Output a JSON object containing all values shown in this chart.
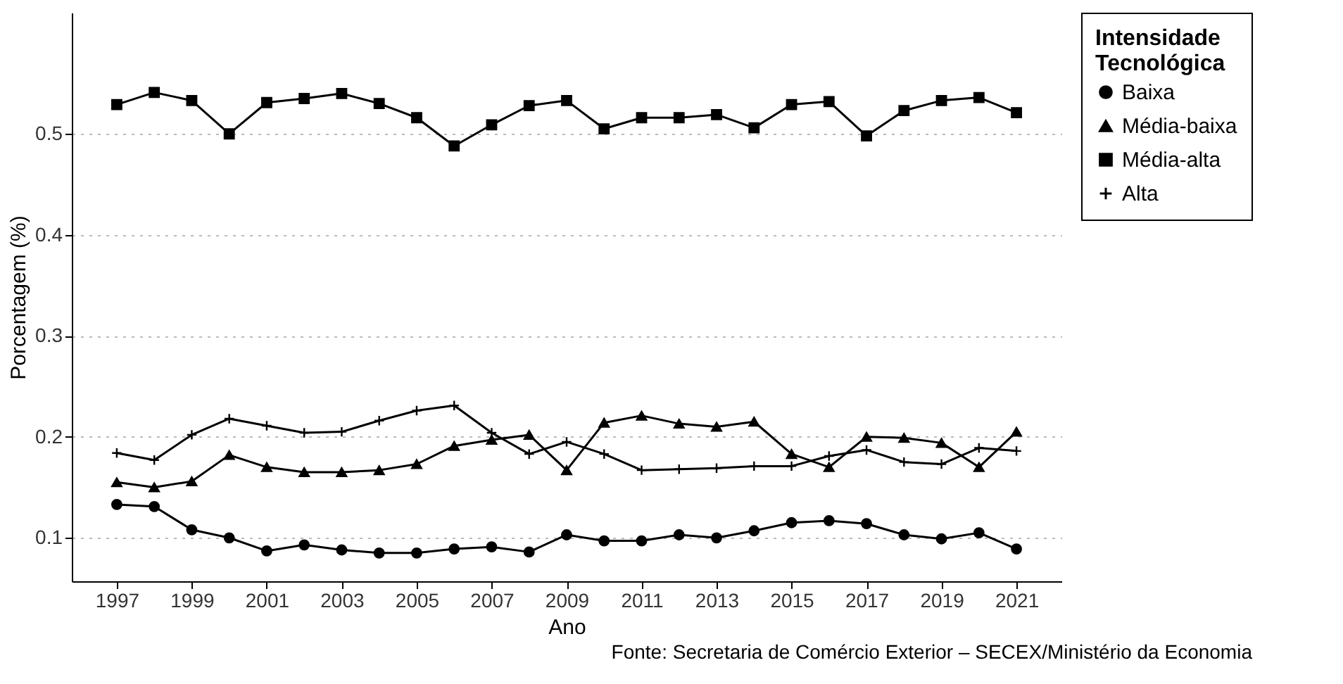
{
  "chart_data": {
    "type": "line",
    "xlabel": "Ano",
    "ylabel": "Porcentagem (%)",
    "legend_title": "Intensidade Tecnológica",
    "annotations": [
      "Fonte: Secretaria de Comércio Exterior – SECEX/Ministério da Economia"
    ],
    "x": [
      1997,
      1998,
      1999,
      2000,
      2001,
      2002,
      2003,
      2004,
      2005,
      2006,
      2007,
      2008,
      2009,
      2010,
      2011,
      2012,
      2013,
      2014,
      2015,
      2016,
      2017,
      2018,
      2019,
      2020,
      2021
    ],
    "series": [
      {
        "name": "Baixa",
        "color": "#000000",
        "marker": "circle",
        "values": [
          0.133,
          0.131,
          0.108,
          0.1,
          0.087,
          0.093,
          0.088,
          0.085,
          0.085,
          0.089,
          0.091,
          0.086,
          0.103,
          0.097,
          0.097,
          0.103,
          0.1,
          0.107,
          0.115,
          0.117,
          0.114,
          0.103,
          0.099,
          0.105,
          0.089
        ]
      },
      {
        "name": "Média-baixa",
        "color": "#000000",
        "marker": "triangle",
        "values": [
          0.155,
          0.15,
          0.156,
          0.182,
          0.17,
          0.165,
          0.165,
          0.167,
          0.173,
          0.191,
          0.197,
          0.202,
          0.167,
          0.214,
          0.221,
          0.213,
          0.21,
          0.215,
          0.183,
          0.17,
          0.2,
          0.199,
          0.194,
          0.17,
          0.205
        ]
      },
      {
        "name": "Média-alta",
        "color": "#000000",
        "marker": "square",
        "values": [
          0.529,
          0.541,
          0.533,
          0.5,
          0.531,
          0.535,
          0.54,
          0.53,
          0.516,
          0.488,
          0.509,
          0.528,
          0.533,
          0.505,
          0.516,
          0.516,
          0.519,
          0.506,
          0.529,
          0.532,
          0.498,
          0.523,
          0.533,
          0.536,
          0.521
        ]
      },
      {
        "name": "Alta",
        "color": "#000000",
        "marker": "cross",
        "values": [
          0.184,
          0.177,
          0.202,
          0.218,
          0.211,
          0.204,
          0.205,
          0.216,
          0.226,
          0.231,
          0.204,
          0.183,
          0.195,
          0.183,
          0.167,
          0.168,
          0.169,
          0.171,
          0.171,
          0.181,
          0.187,
          0.175,
          0.173,
          0.189,
          0.186
        ]
      }
    ],
    "xlim": [
      1995.8,
      2022.2
    ],
    "xticks": [
      1997,
      1999,
      2001,
      2003,
      2005,
      2007,
      2009,
      2011,
      2013,
      2015,
      2017,
      2019,
      2021
    ],
    "ylim": [
      0.057,
      0.62
    ],
    "yticks": [
      0.1,
      0.2,
      0.3,
      0.4,
      0.5
    ],
    "grid": "y",
    "legend": "right",
    "line_style": "solid"
  }
}
